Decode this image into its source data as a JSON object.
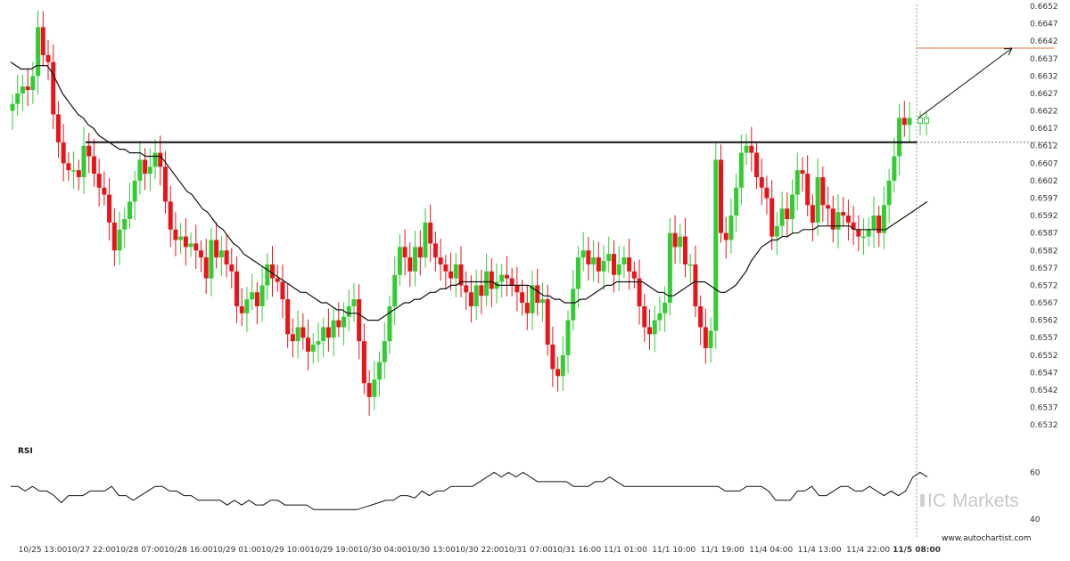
{
  "chart_data": {
    "type": "candlestick",
    "y_ticks": [
      "0.6652",
      "0.6647",
      "0.6642",
      "0.6637",
      "0.6632",
      "0.6627",
      "0.6622",
      "0.6617",
      "0.6612",
      "0.6607",
      "0.6602",
      "0.6597",
      "0.6592",
      "0.6587",
      "0.6582",
      "0.6577",
      "0.6572",
      "0.6567",
      "0.6562",
      "0.6557",
      "0.6552",
      "0.6547",
      "0.6542",
      "0.6537",
      "0.6532"
    ],
    "ylim": [
      0.653,
      0.6652
    ],
    "x_ticks": [
      "10/25 13:00",
      "10/27 22:00",
      "10/28 07:00",
      "10/28 16:00",
      "10/29 01:00",
      "10/29 10:00",
      "10/29 19:00",
      "10/30 04:00",
      "10/30 13:00",
      "10/30 22:00",
      "10/31 07:00",
      "10/31 16:00",
      "11/1 01:00",
      "11/1 10:00",
      "11/1 19:00",
      "11/4 04:00",
      "11/4 13:00",
      "11/4 22:00",
      "11/5 08:00"
    ],
    "candles_close": [
      0.6624,
      0.6627,
      0.6629,
      0.6628,
      0.6632,
      0.6646,
      0.6638,
      0.6636,
      0.6621,
      0.6613,
      0.6607,
      0.6605,
      0.6605,
      0.6603,
      0.6612,
      0.6609,
      0.6604,
      0.66,
      0.6598,
      0.659,
      0.6582,
      0.6588,
      0.6591,
      0.6596,
      0.6602,
      0.6608,
      0.6604,
      0.6606,
      0.661,
      0.6606,
      0.6596,
      0.6588,
      0.6585,
      0.6586,
      0.6583,
      0.6584,
      0.6582,
      0.658,
      0.6574,
      0.6585,
      0.658,
      0.6582,
      0.6578,
      0.6576,
      0.6566,
      0.6564,
      0.6568,
      0.657,
      0.6566,
      0.6572,
      0.6578,
      0.6574,
      0.6573,
      0.6568,
      0.6558,
      0.6556,
      0.656,
      0.6557,
      0.6553,
      0.6555,
      0.6556,
      0.656,
      0.6557,
      0.6562,
      0.656,
      0.6563,
      0.6566,
      0.6568,
      0.6556,
      0.6544,
      0.654,
      0.6545,
      0.655,
      0.6556,
      0.6566,
      0.6575,
      0.6583,
      0.658,
      0.6576,
      0.6583,
      0.658,
      0.659,
      0.6584,
      0.658,
      0.6578,
      0.6576,
      0.6574,
      0.6578,
      0.6572,
      0.657,
      0.6566,
      0.6572,
      0.6569,
      0.6576,
      0.6571,
      0.6573,
      0.6575,
      0.6574,
      0.6572,
      0.657,
      0.6567,
      0.6564,
      0.6572,
      0.6567,
      0.6568,
      0.6555,
      0.6548,
      0.6546,
      0.6552,
      0.6562,
      0.6571,
      0.658,
      0.6582,
      0.6578,
      0.658,
      0.6576,
      0.6579,
      0.6581,
      0.6575,
      0.6578,
      0.658,
      0.6576,
      0.6574,
      0.6566,
      0.656,
      0.6558,
      0.6562,
      0.6564,
      0.6567,
      0.6587,
      0.6583,
      0.6586,
      0.6578,
      0.6578,
      0.6566,
      0.656,
      0.6554,
      0.6559,
      0.6608,
      0.6587,
      0.6585,
      0.6592,
      0.66,
      0.661,
      0.6612,
      0.661,
      0.6603,
      0.66,
      0.6597,
      0.6586,
      0.6589,
      0.6594,
      0.6591,
      0.6598,
      0.6605,
      0.6604,
      0.6595,
      0.659,
      0.6603,
      0.6595,
      0.6594,
      0.6588,
      0.6593,
      0.6592,
      0.659,
      0.6588,
      0.6586,
      0.6586,
      0.6588,
      0.6592,
      0.6587,
      0.6595,
      0.6602,
      0.6609,
      0.662,
      0.6618,
      0.662
    ],
    "series": [
      {
        "name": "",
        "kind": "moving-average",
        "values": [
          0.6636,
          0.6635,
          0.6634,
          0.6634,
          0.6634,
          0.6635,
          0.6635,
          0.6635,
          0.6633,
          0.663,
          0.6627,
          0.6625,
          0.6623,
          0.6621,
          0.662,
          0.6618,
          0.6617,
          0.6615,
          0.6614,
          0.6613,
          0.6612,
          0.6611,
          0.6611,
          0.661,
          0.661,
          0.661,
          0.6609,
          0.6609,
          0.6609,
          0.6609,
          0.6607,
          0.6605,
          0.6603,
          0.6601,
          0.6599,
          0.6598,
          0.6596,
          0.6594,
          0.6593,
          0.6591,
          0.6589,
          0.6588,
          0.6586,
          0.6584,
          0.6583,
          0.6581,
          0.658,
          0.6579,
          0.6578,
          0.6577,
          0.6576,
          0.6575,
          0.6574,
          0.6573,
          0.6572,
          0.6571,
          0.657,
          0.657,
          0.6569,
          0.6568,
          0.6567,
          0.6567,
          0.6566,
          0.6565,
          0.6565,
          0.6564,
          0.6564,
          0.6564,
          0.6563,
          0.6562,
          0.6562,
          0.6562,
          0.6563,
          0.6564,
          0.6565,
          0.6566,
          0.6567,
          0.6567,
          0.6568,
          0.6568,
          0.6569,
          0.657,
          0.657,
          0.6571,
          0.6571,
          0.6572,
          0.6572,
          0.6573,
          0.6573,
          0.6573,
          0.6573,
          0.6573,
          0.6573,
          0.6573,
          0.6572,
          0.6572,
          0.6572,
          0.6572,
          0.6572,
          0.6572,
          0.6572,
          0.6571,
          0.657,
          0.6569,
          0.6569,
          0.6568,
          0.6568,
          0.6567,
          0.6567,
          0.6567,
          0.6568,
          0.6568,
          0.6569,
          0.657,
          0.6571,
          0.6572,
          0.6572,
          0.6573,
          0.6573,
          0.6573,
          0.6573,
          0.6573,
          0.6573,
          0.6572,
          0.6571,
          0.657,
          0.657,
          0.6569,
          0.6569,
          0.657,
          0.6571,
          0.6572,
          0.6573,
          0.6573,
          0.6573,
          0.6572,
          0.6571,
          0.657,
          0.657,
          0.6571,
          0.6572,
          0.6574,
          0.6576,
          0.6579,
          0.6581,
          0.6583,
          0.6584,
          0.6585,
          0.6585,
          0.6586,
          0.6586,
          0.6587,
          0.6587,
          0.6588,
          0.6588,
          0.6588,
          0.6589,
          0.6589,
          0.6589,
          0.6589,
          0.6589,
          0.6589,
          0.6589,
          0.6588,
          0.6588,
          0.6588,
          0.6588,
          0.6588,
          0.6588,
          0.6588,
          0.6589,
          0.659,
          0.6591,
          0.6592,
          0.6593,
          0.6594,
          0.6595,
          0.6596
        ]
      }
    ],
    "resistance_level": 0.6613,
    "projection": {
      "from": 0.662,
      "to": 0.664,
      "target_level": 0.664
    },
    "grid": false,
    "rsi_panel": {
      "label": "RSI",
      "y_ticks": [
        "60",
        "40"
      ],
      "values": [
        54,
        54,
        52,
        54,
        52,
        52,
        50,
        47,
        50,
        50,
        50,
        52,
        52,
        52,
        54,
        50,
        50,
        48,
        50,
        52,
        54,
        54,
        52,
        52,
        50,
        50,
        48,
        48,
        48,
        48,
        46,
        48,
        46,
        48,
        46,
        46,
        48,
        48,
        46,
        46,
        46,
        46,
        44,
        44,
        44,
        44,
        44,
        44,
        44,
        45,
        46,
        47,
        48,
        48,
        50,
        50,
        49,
        52,
        50,
        52,
        52,
        54,
        54,
        54,
        54,
        56,
        58,
        60,
        58,
        60,
        58,
        60,
        58,
        56,
        56,
        56,
        56,
        56,
        54,
        54,
        54,
        56,
        56,
        58,
        56,
        54,
        54,
        54,
        54,
        54,
        54,
        54,
        54,
        54,
        54,
        54,
        54,
        54,
        54,
        52,
        52,
        52,
        54,
        54,
        54,
        52,
        48,
        48,
        48,
        52,
        52,
        54,
        50,
        50,
        52,
        54,
        54,
        52,
        52,
        54,
        52,
        50,
        52,
        50,
        52,
        58,
        60,
        58
      ],
      "ylim": [
        38,
        64
      ]
    }
  },
  "watermark": {
    "prefix": "IC",
    "name": "Markets"
  },
  "site": "www.autochartist.com",
  "colors": {
    "up": "#33cc33",
    "down": "#e8141a",
    "level": "#111111",
    "target": "#e07838",
    "ma": "#111111"
  }
}
